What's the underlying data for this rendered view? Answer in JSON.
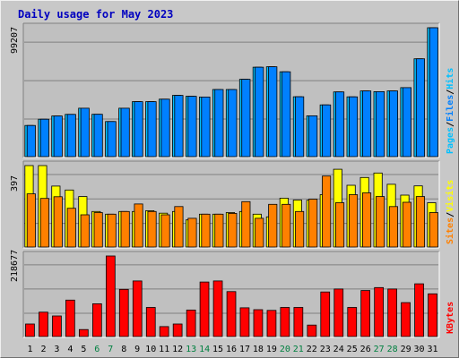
{
  "chart_data": {
    "type": "bar",
    "title": "Daily usage for May 2023",
    "colors": {
      "title": "#0000c0",
      "hits": "#00c0ff",
      "files": "#0080ff",
      "pages": "#00c0ff",
      "visits": "#ffff00",
      "sites": "#ff8000",
      "kbytes": "#ff0000",
      "weekend_label": "#008040",
      "weekday_label": "#000000"
    },
    "categories": [
      "1",
      "2",
      "3",
      "4",
      "5",
      "6",
      "7",
      "8",
      "9",
      "10",
      "11",
      "12",
      "13",
      "14",
      "15",
      "16",
      "17",
      "18",
      "19",
      "20",
      "21",
      "22",
      "23",
      "24",
      "25",
      "26",
      "27",
      "28",
      "29",
      "30",
      "31"
    ],
    "weekend_days": [
      "6",
      "7",
      "13",
      "14",
      "20",
      "21",
      "27",
      "28"
    ],
    "panels": [
      {
        "id": "hits",
        "max_label": "99207",
        "legend": [
          {
            "text": "Hits",
            "color": "#00c0ff"
          },
          {
            "text": "/",
            "color": "#000000"
          },
          {
            "text": "Files",
            "color": "#0080ff"
          },
          {
            "text": "/",
            "color": "#000000"
          },
          {
            "text": "Pages",
            "color": "#00c0ff"
          }
        ],
        "ylim": [
          0,
          99207
        ],
        "series": [
          {
            "name": "Hits",
            "color": "#00c0ff",
            "offset": "back",
            "values": [
              24000,
              28800,
              31300,
              32500,
              37300,
              32600,
              27000,
              37300,
              42300,
              42300,
              44200,
              47100,
              46400,
              45900,
              51700,
              51700,
              59500,
              68800,
              69200,
              65300,
              46100,
              31400,
              39800,
              49800,
              46000,
              50600,
              50000,
              50600,
              53100,
              75300,
              99207
            ]
          },
          {
            "name": "Files",
            "color": "#0080ff",
            "offset": "front",
            "values": [
              24000,
              28800,
              31300,
              32500,
              37300,
              32600,
              27000,
              37300,
              42300,
              42300,
              44200,
              47100,
              46400,
              45900,
              51700,
              51700,
              59500,
              68800,
              69200,
              65300,
              46100,
              31400,
              39800,
              49800,
              46000,
              50600,
              50000,
              50600,
              53100,
              75300,
              99207
            ]
          }
        ]
      },
      {
        "id": "visits",
        "max_label": "397",
        "legend": [
          {
            "text": "Visits",
            "color": "#ffff00"
          },
          {
            "text": "/",
            "color": "#000000"
          },
          {
            "text": "Sites",
            "color": "#ff8000"
          }
        ],
        "ylim": [
          0,
          397
        ],
        "series": [
          {
            "name": "Visits",
            "color": "#ffff00",
            "offset": "back",
            "values": [
              397,
              397,
              297,
              278,
              246,
              173,
              160,
              173,
              173,
              177,
              165,
              173,
              132,
              160,
              160,
              168,
              173,
              160,
              147,
              238,
              229,
              228,
              255,
              379,
              301,
              339,
              361,
              306,
              253,
              298,
              216
            ]
          },
          {
            "name": "Sites",
            "color": "#ff8000",
            "offset": "front",
            "values": [
              259,
              237,
              245,
              189,
              157,
              168,
              160,
              173,
              210,
              173,
              157,
              197,
              140,
              160,
              160,
              164,
              221,
              140,
              208,
              208,
              173,
              233,
              346,
              216,
              255,
              264,
              246,
              197,
              218,
              246,
              168
            ]
          }
        ]
      },
      {
        "id": "kbytes",
        "max_label": "218677",
        "legend": [
          {
            "text": "KBytes",
            "color": "#ff0000"
          }
        ],
        "ylim": [
          0,
          218677
        ],
        "series": [
          {
            "name": "KBytes",
            "color": "#ff0000",
            "offset": "single",
            "values": [
              34000,
              66000,
              56000,
              99000,
              19000,
              89000,
              218677,
              128000,
              151000,
              79000,
              27000,
              34000,
              72000,
              148000,
              151000,
              122000,
              78000,
              73000,
              71000,
              79000,
              79000,
              31000,
              121000,
              129000,
              79000,
              125000,
              133000,
              129000,
              92000,
              143000,
              116000
            ]
          }
        ]
      }
    ]
  }
}
